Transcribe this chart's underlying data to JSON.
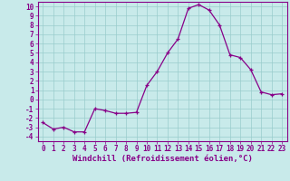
{
  "x": [
    0,
    1,
    2,
    3,
    4,
    5,
    6,
    7,
    8,
    9,
    10,
    11,
    12,
    13,
    14,
    15,
    16,
    17,
    18,
    19,
    20,
    21,
    22,
    23
  ],
  "y": [
    -2.5,
    -3.2,
    -3.0,
    -3.5,
    -3.5,
    -1.0,
    -1.2,
    -1.5,
    -1.5,
    -1.4,
    1.5,
    3.0,
    5.0,
    6.5,
    9.8,
    10.2,
    9.6,
    8.0,
    4.8,
    4.5,
    3.2,
    0.8,
    0.5,
    0.6
  ],
  "xlim": [
    -0.5,
    23.5
  ],
  "ylim": [
    -4.5,
    10.5
  ],
  "yticks": [
    10,
    9,
    8,
    7,
    6,
    5,
    4,
    3,
    2,
    1,
    0,
    -1,
    -2,
    -3,
    -4
  ],
  "xticks": [
    0,
    1,
    2,
    3,
    4,
    5,
    6,
    7,
    8,
    9,
    10,
    11,
    12,
    13,
    14,
    15,
    16,
    17,
    18,
    19,
    20,
    21,
    22,
    23
  ],
  "xlabel": "Windchill (Refroidissement éolien,°C)",
  "line_color": "#880088",
  "marker": "+",
  "bg_color": "#c8eaea",
  "grid_color": "#99cccc",
  "spine_color": "#880088",
  "tick_label_color": "#880088",
  "xlabel_color": "#880088",
  "tick_fontsize": 5.5,
  "xlabel_fontsize": 6.5
}
